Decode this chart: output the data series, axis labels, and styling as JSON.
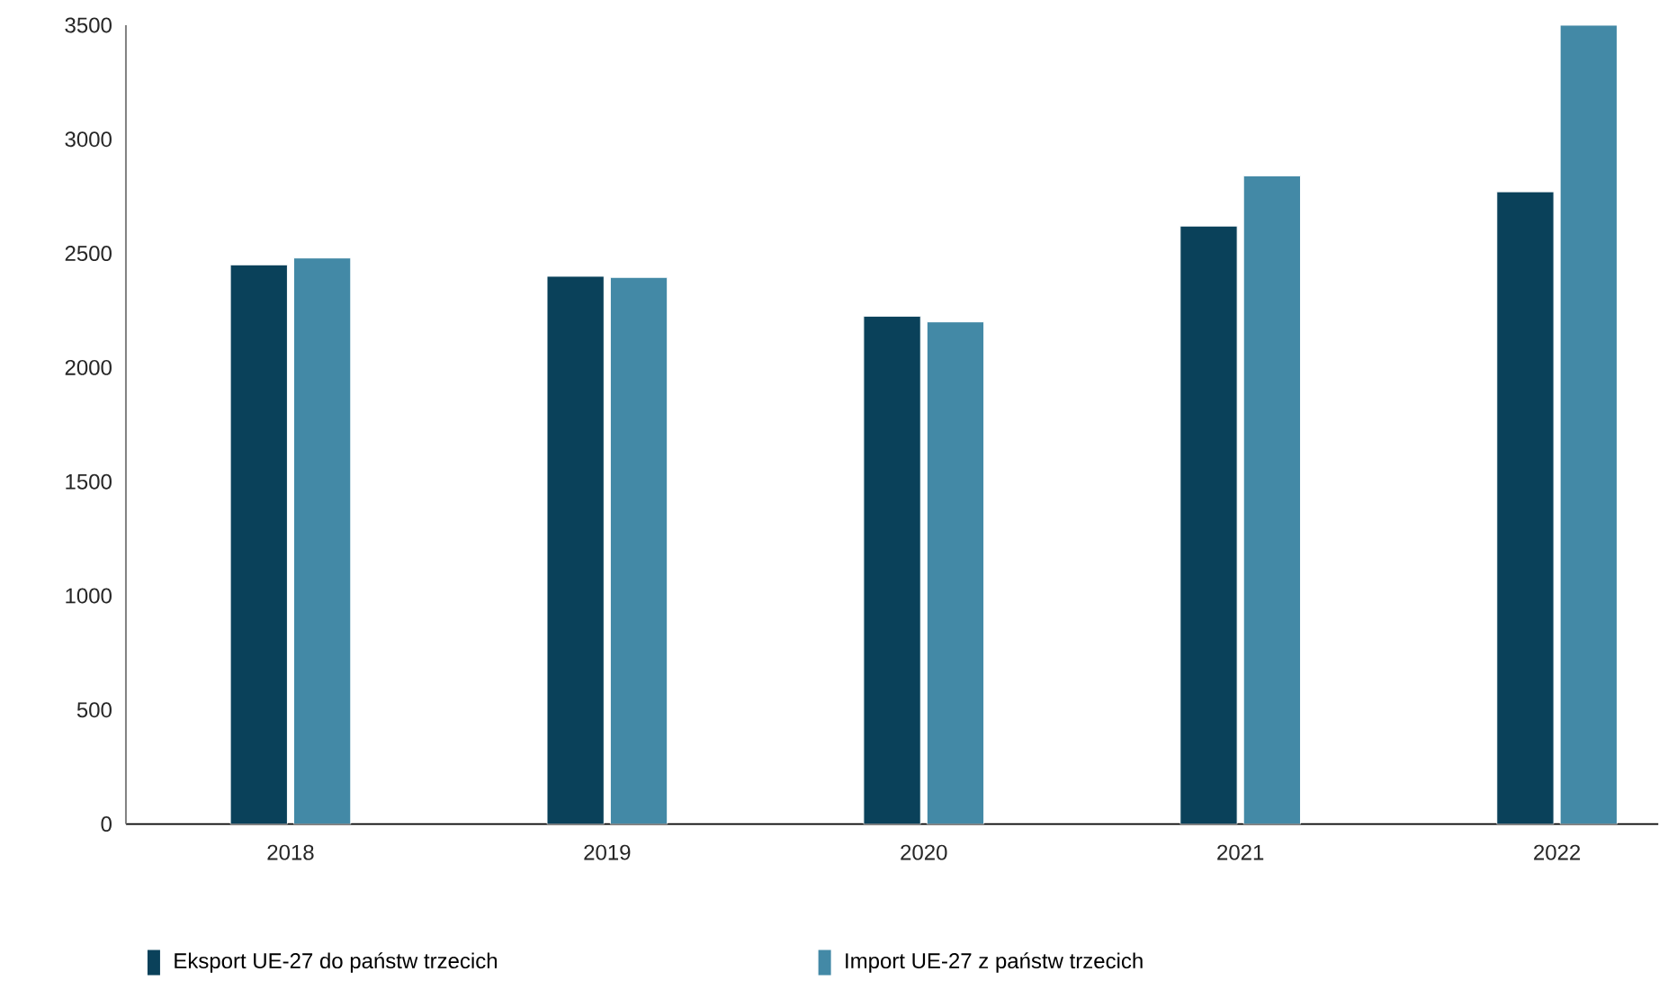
{
  "chart_data": {
    "type": "bar",
    "categories": [
      "2018",
      "2019",
      "2020",
      "2021",
      "2022"
    ],
    "series": [
      {
        "name": "Eksport UE-27 do państw trzecich",
        "color": "#0a415a",
        "values": [
          2450,
          2400,
          2225,
          2620,
          2770
        ]
      },
      {
        "name": "Import UE-27 z państw trzecich",
        "color": "#4389a6",
        "values": [
          2480,
          2395,
          2200,
          2840,
          3500
        ]
      }
    ],
    "ylim": [
      0,
      3500
    ],
    "yticks": [
      0,
      500,
      1000,
      1500,
      2000,
      2500,
      3000,
      3500
    ],
    "grid": false,
    "legend": "bottom"
  }
}
